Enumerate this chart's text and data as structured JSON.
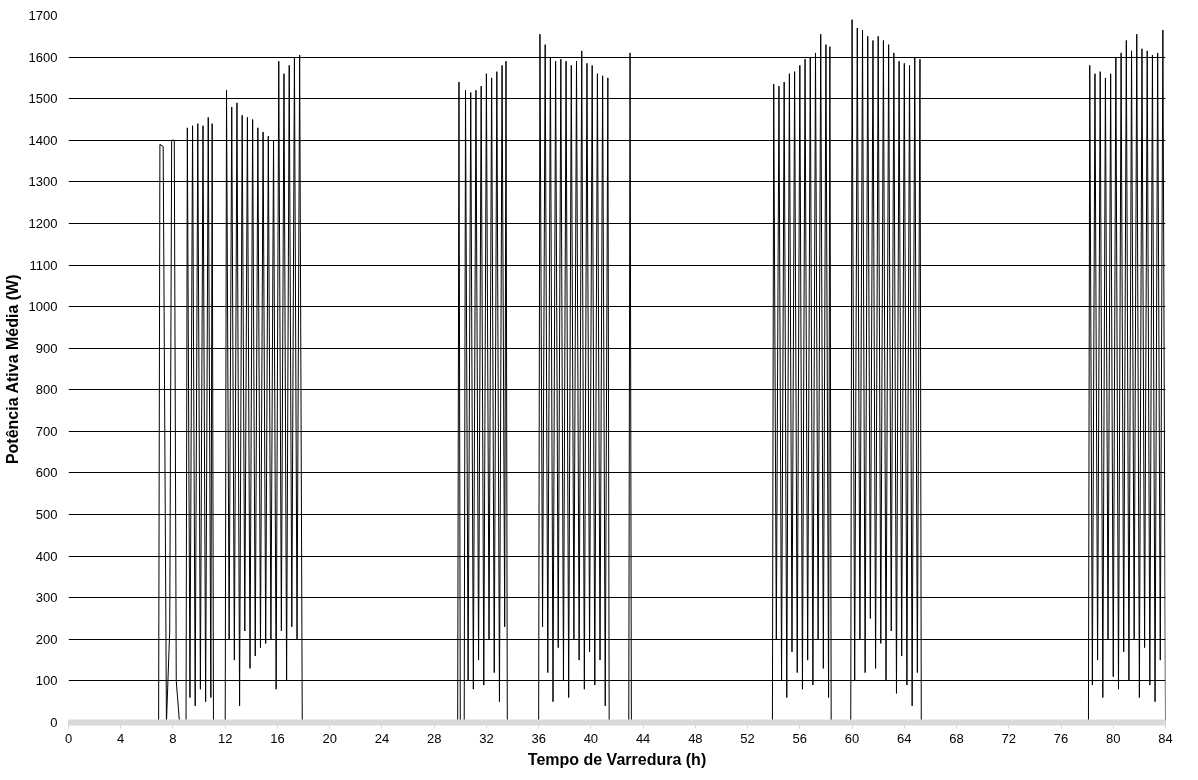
{
  "chart_data": {
    "type": "line",
    "xlabel": "Tempo de Varredura (h)",
    "ylabel": "Potência Ativa Média (W)",
    "xlim": [
      0,
      84
    ],
    "xticks": [
      0,
      4,
      8,
      12,
      16,
      20,
      24,
      28,
      32,
      36,
      40,
      44,
      48,
      52,
      56,
      60,
      64,
      68,
      72,
      76,
      80,
      84
    ],
    "ylim": [
      0,
      1700
    ],
    "yticks": [
      0,
      100,
      200,
      300,
      400,
      500,
      600,
      700,
      800,
      900,
      1000,
      1100,
      1200,
      1300,
      1400,
      1500,
      1600,
      1700
    ],
    "grid": "y",
    "marker": "none",
    "line_style": "solid",
    "series": [
      {
        "color": "#000000",
        "x": [
          0,
          6.9,
          7.0,
          7.25,
          7.5,
          7.75,
          7.9,
          8.1,
          8.25,
          8.5,
          9.0,
          9.1,
          9.3,
          9.5,
          9.7,
          9.9,
          10.1,
          10.3,
          10.5,
          10.7,
          10.9,
          11.0,
          11.1,
          12.0,
          12.1,
          12.3,
          12.5,
          12.7,
          12.9,
          13.1,
          13.3,
          13.5,
          13.7,
          13.9,
          14.1,
          14.3,
          14.5,
          14.7,
          14.9,
          15.1,
          15.3,
          15.5,
          15.7,
          15.9,
          16.1,
          16.3,
          16.5,
          16.7,
          16.9,
          17.1,
          17.3,
          17.5,
          17.7,
          17.9,
          29.8,
          29.9,
          30.0,
          30.3,
          30.4,
          30.6,
          30.8,
          31.0,
          31.2,
          31.4,
          31.6,
          31.8,
          32.0,
          32.2,
          32.4,
          32.6,
          32.8,
          33.0,
          33.2,
          33.4,
          33.5,
          33.6,
          36.0,
          36.1,
          36.3,
          36.5,
          36.7,
          36.9,
          37.1,
          37.3,
          37.5,
          37.7,
          37.9,
          38.1,
          38.3,
          38.5,
          38.7,
          38.9,
          39.1,
          39.3,
          39.5,
          39.7,
          39.9,
          40.1,
          40.3,
          40.5,
          40.7,
          40.9,
          41.1,
          41.3,
          41.4,
          42.9,
          43.0,
          43.1,
          53.9,
          54.0,
          54.2,
          54.4,
          54.6,
          54.8,
          55.0,
          55.2,
          55.4,
          55.6,
          55.8,
          56.0,
          56.2,
          56.4,
          56.6,
          56.8,
          57.0,
          57.2,
          57.4,
          57.6,
          57.8,
          58.0,
          58.2,
          58.3,
          58.4,
          59.9,
          60.0,
          60.2,
          60.4,
          60.6,
          60.8,
          61.0,
          61.2,
          61.4,
          61.6,
          61.8,
          62.0,
          62.2,
          62.4,
          62.6,
          62.8,
          63.0,
          63.2,
          63.4,
          63.6,
          63.8,
          64.0,
          64.2,
          64.4,
          64.6,
          64.8,
          65.0,
          65.2,
          65.3,
          78.1,
          78.2,
          78.4,
          78.6,
          78.8,
          79.0,
          79.2,
          79.4,
          79.6,
          79.8,
          80.0,
          80.2,
          80.4,
          80.6,
          80.8,
          81.0,
          81.2,
          81.4,
          81.6,
          81.8,
          82.0,
          82.2,
          82.4,
          82.6,
          82.8,
          83.0,
          83.2,
          83.4,
          83.6,
          83.8,
          84.0
        ],
        "values": [
          0,
          0,
          1390,
          1385,
          0,
          220,
          1400,
          1400,
          100,
          0,
          0,
          1430,
          60,
          1435,
          40,
          1440,
          80,
          1435,
          50,
          1455,
          60,
          1440,
          0,
          0,
          1520,
          200,
          1480,
          150,
          1490,
          40,
          1460,
          220,
          1455,
          130,
          1450,
          160,
          1430,
          180,
          1420,
          190,
          1410,
          200,
          1400,
          80,
          1590,
          220,
          1560,
          100,
          1580,
          230,
          1600,
          200,
          1605,
          0,
          0,
          1540,
          0,
          0,
          1520,
          100,
          1515,
          80,
          1520,
          150,
          1530,
          90,
          1560,
          200,
          1550,
          120,
          1565,
          50,
          1580,
          230,
          1590,
          0,
          0,
          1655,
          230,
          1630,
          120,
          1600,
          50,
          1590,
          180,
          1595,
          100,
          1590,
          60,
          1580,
          200,
          1590,
          150,
          1615,
          80,
          1585,
          170,
          1580,
          90,
          1560,
          150,
          1555,
          40,
          1550,
          0,
          0,
          1610,
          0,
          0,
          1535,
          200,
          1530,
          100,
          1540,
          60,
          1560,
          170,
          1565,
          120,
          1580,
          80,
          1595,
          150,
          1600,
          90,
          1610,
          200,
          1655,
          130,
          1630,
          60,
          1625,
          0,
          0,
          1690,
          100,
          1670,
          200,
          1665,
          120,
          1650,
          250,
          1640,
          130,
          1650,
          190,
          1640,
          100,
          1630,
          220,
          1610,
          70,
          1590,
          160,
          1585,
          90,
          1580,
          40,
          1600,
          120,
          1595,
          0,
          0,
          1580,
          90,
          1560,
          150,
          1565,
          60,
          1550,
          200,
          1560,
          110,
          1600,
          80,
          1610,
          170,
          1640,
          100,
          1615,
          200,
          1655,
          60,
          1620,
          180,
          1615,
          90,
          1605,
          50,
          1610,
          150,
          1665,
          0
        ]
      }
    ]
  }
}
